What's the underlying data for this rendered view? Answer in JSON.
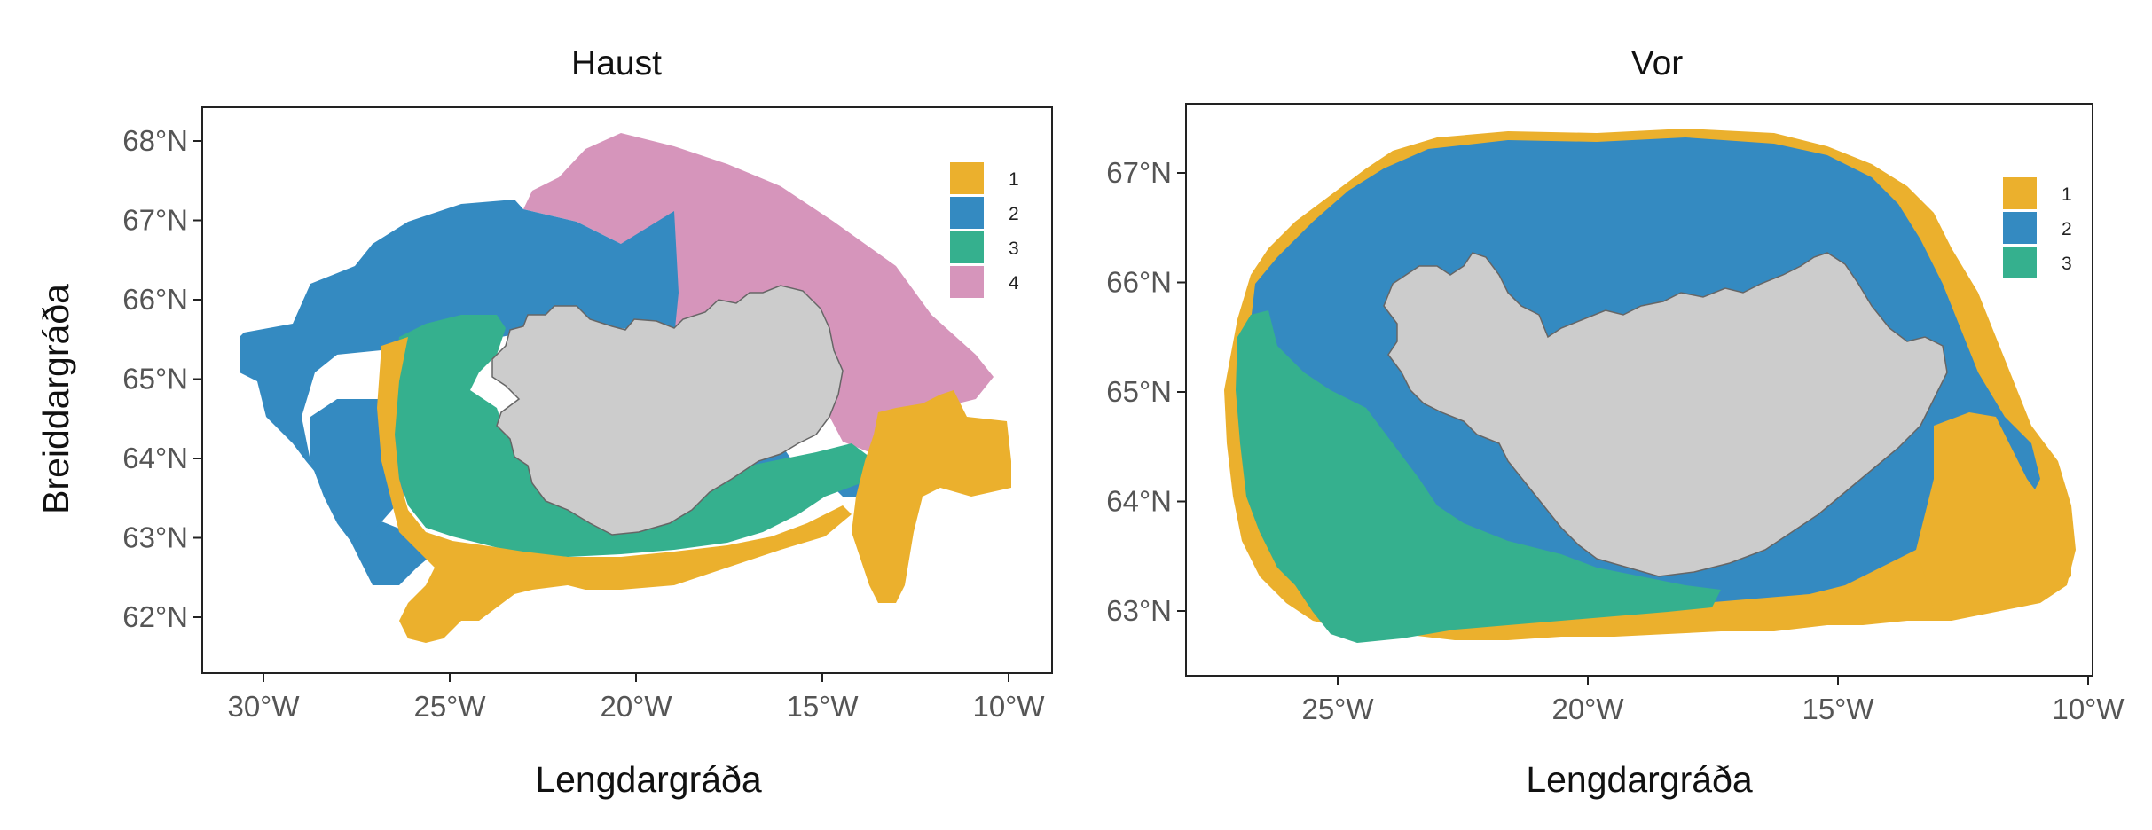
{
  "colors": {
    "cluster_1": "#EBB02D",
    "cluster_2": "#348AC1",
    "cluster_3": "#35B08E",
    "cluster_4": "#D695BB",
    "land": "#CCCCCC",
    "land_outline": "#666666",
    "frame": "#222222"
  },
  "panels": [
    {
      "title": "Haust",
      "xlabel": "Lengdargráða",
      "ylabel": "Breiddargráða",
      "x_ticks": [
        "30°W",
        "25°W",
        "20°W",
        "15°W",
        "10°W"
      ],
      "y_ticks": [
        "62°N",
        "63°N",
        "64°N",
        "65°N",
        "66°N",
        "67°N",
        "68°N"
      ],
      "legend": [
        "1",
        "2",
        "3",
        "4"
      ]
    },
    {
      "title": "Vor",
      "xlabel": "Lengdargráða",
      "ylabel": "",
      "x_ticks": [
        "25°W",
        "20°W",
        "15°W",
        "10°W"
      ],
      "y_ticks": [
        "63°N",
        "64°N",
        "65°N",
        "66°N",
        "67°N"
      ],
      "legend": [
        "1",
        "2",
        "3"
      ]
    }
  ]
}
